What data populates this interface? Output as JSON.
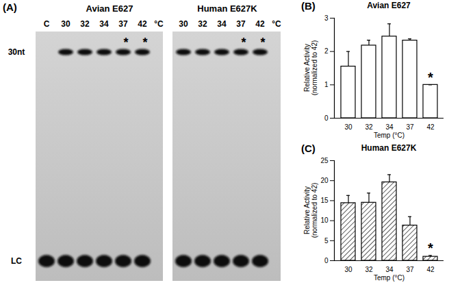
{
  "gel": {
    "label": "(A)",
    "upper_band": "30nt",
    "lower_band": "LC",
    "panels": [
      {
        "title": "Avian E627",
        "unit": "°C",
        "star": "*",
        "lanes": [
          {
            "label": "C",
            "product": false,
            "starred": false
          },
          {
            "label": "30",
            "product": true,
            "starred": false
          },
          {
            "label": "32",
            "product": true,
            "starred": false
          },
          {
            "label": "34",
            "product": true,
            "starred": false
          },
          {
            "label": "37",
            "product": true,
            "starred": true
          },
          {
            "label": "42",
            "product": true,
            "starred": true
          }
        ]
      },
      {
        "title": "Human E627K",
        "unit": "°C",
        "star": "*",
        "lanes": [
          {
            "label": "30",
            "product": true,
            "starred": false
          },
          {
            "label": "32",
            "product": true,
            "starred": false
          },
          {
            "label": "34",
            "product": true,
            "starred": false
          },
          {
            "label": "37",
            "product": true,
            "starred": true
          },
          {
            "label": "42",
            "product": true,
            "starred": true
          }
        ]
      }
    ]
  },
  "chart_data": [
    {
      "type": "bar",
      "panel": "(B)",
      "title": "Avian E627",
      "x_label": "Temp (°C)",
      "y_label": [
        "Relative Activity",
        "(normalized to 42)"
      ],
      "categories": [
        "30",
        "32",
        "34",
        "37",
        "42"
      ],
      "values": [
        1.55,
        2.18,
        2.45,
        2.33,
        1.0
      ],
      "errors": [
        0.45,
        0.16,
        0.38,
        0.05,
        0.0
      ],
      "color": "#ffffff",
      "ylim": [
        0,
        3
      ],
      "yticks": [
        0,
        1,
        2,
        3
      ],
      "annotations": [
        {
          "category": "42",
          "text": "*"
        }
      ]
    },
    {
      "type": "bar",
      "panel": "(C)",
      "title": "Human E627K",
      "x_label": "Temp (°C)",
      "y_label": [
        "Relative Activity",
        "(normalized to 42)"
      ],
      "categories": [
        "30",
        "32",
        "34",
        "37",
        "42"
      ],
      "values": [
        14.4,
        14.5,
        19.6,
        8.8,
        1.0
      ],
      "errors": [
        1.9,
        2.4,
        1.9,
        2.2,
        0.3
      ],
      "color": "#ffffff",
      "ylim": [
        0,
        25
      ],
      "yticks": [
        0,
        5,
        10,
        15,
        20,
        25
      ],
      "annotations": [
        {
          "category": "42",
          "text": "*"
        }
      ]
    }
  ]
}
